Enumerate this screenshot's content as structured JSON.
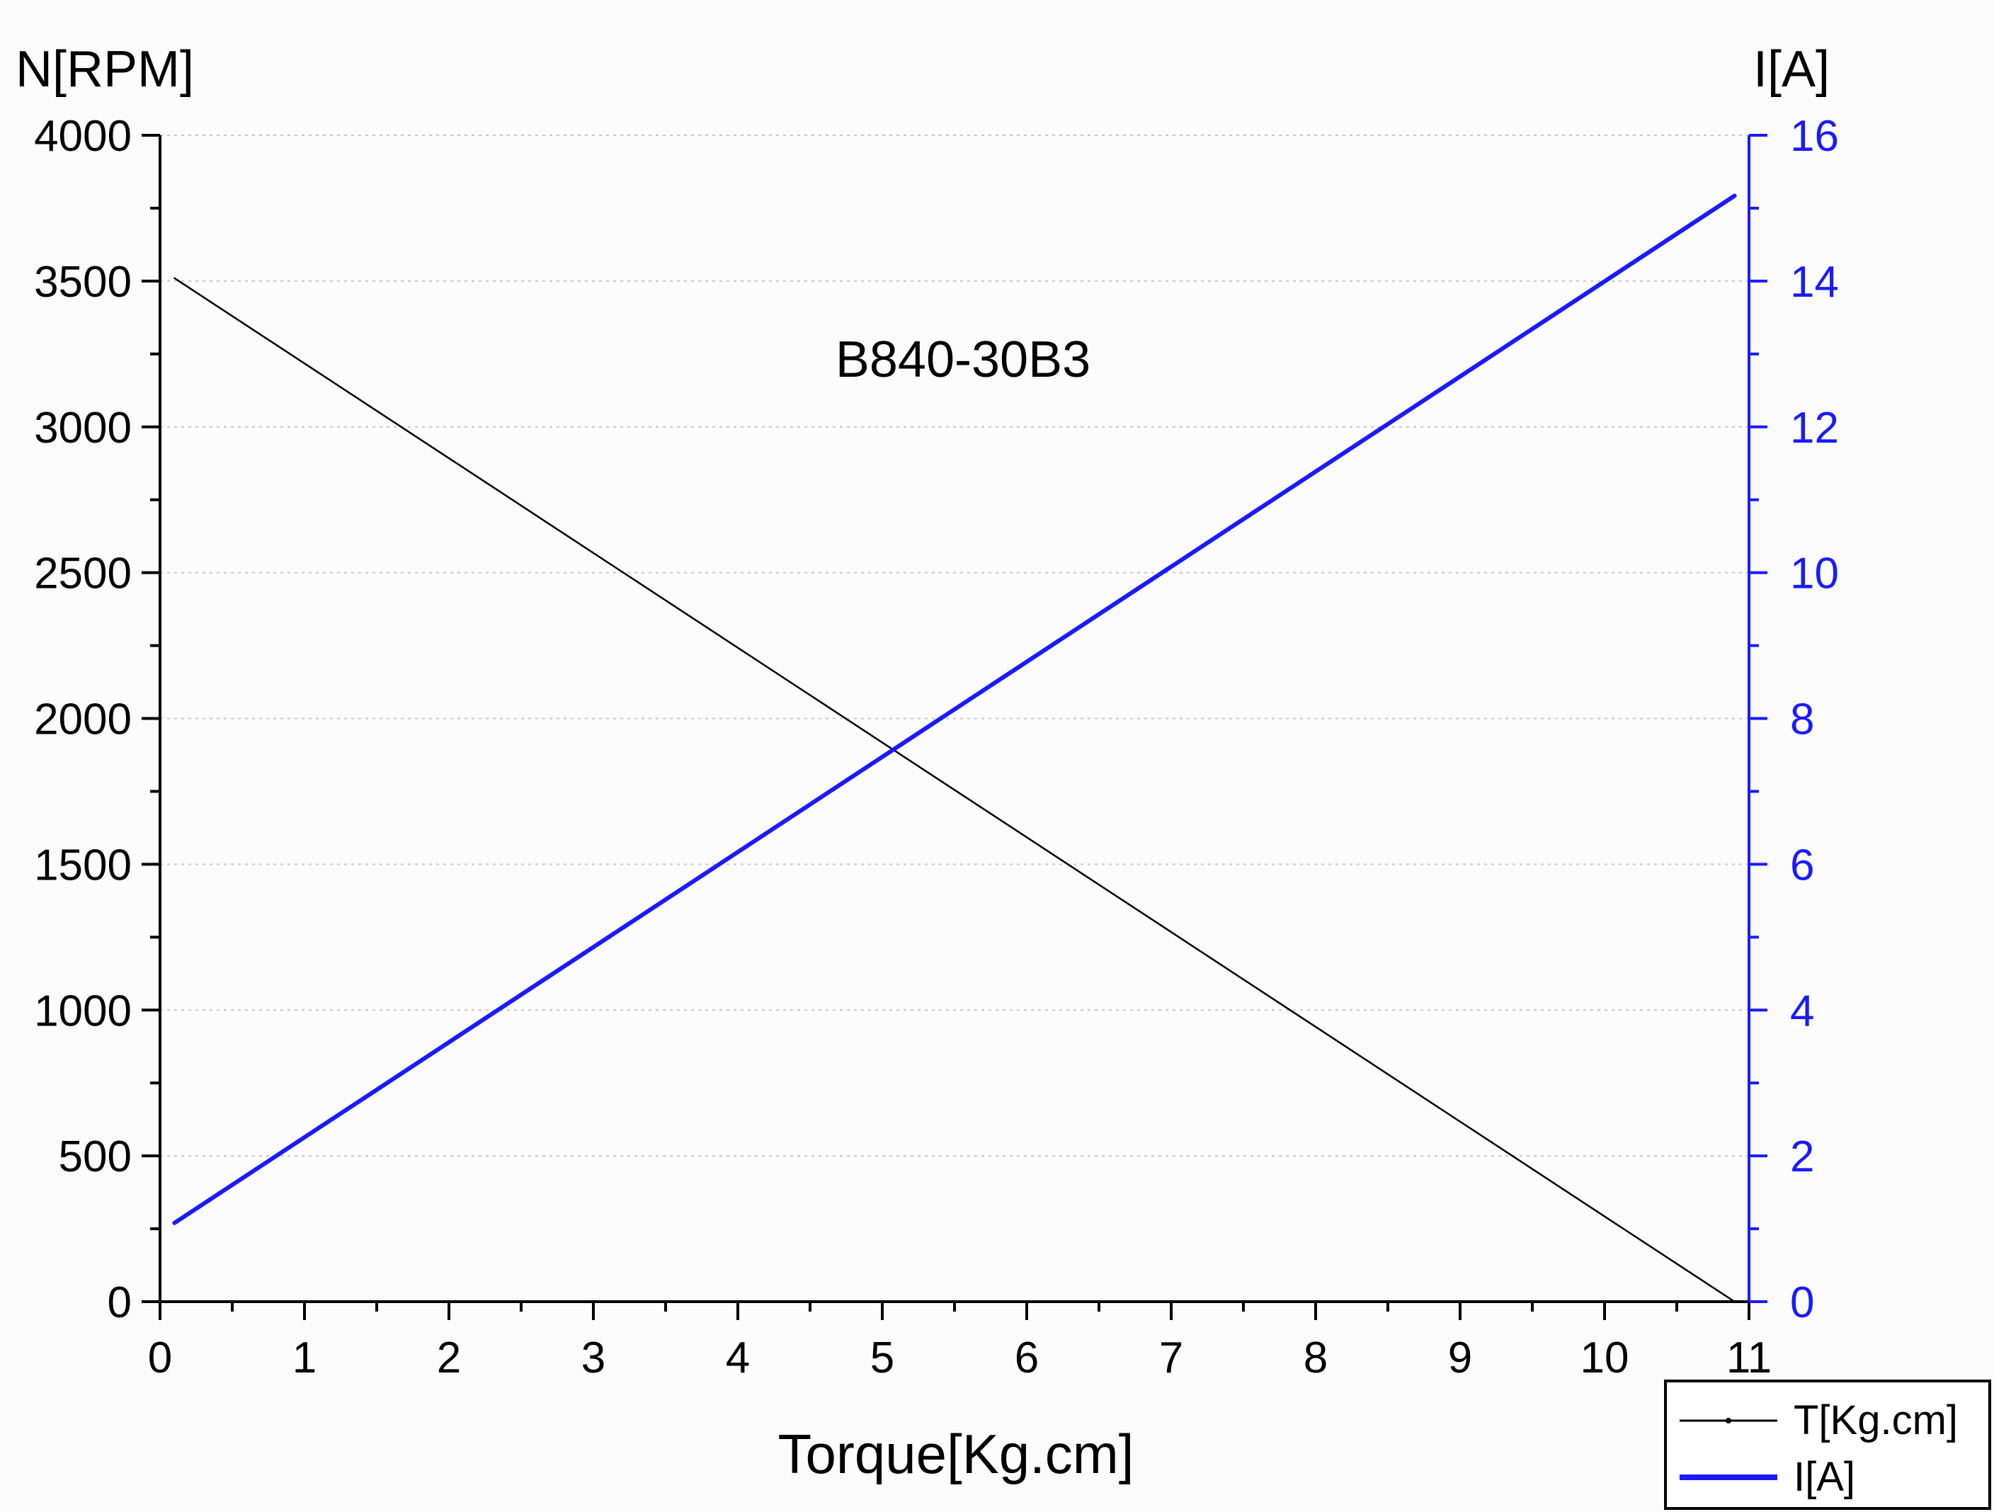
{
  "chart_data": {
    "type": "line",
    "annotation": "B840-30B3",
    "xlabel": "Torque[Kg.cm]",
    "ylabel_left": "N[RPM]",
    "ylabel_right": "I[A]",
    "xlim": [
      0,
      11
    ],
    "ylim_left": [
      0,
      4000
    ],
    "ylim_right": [
      0,
      16
    ],
    "x_ticks": [
      "0",
      "1",
      "2",
      "3",
      "4",
      "5",
      "6",
      "7",
      "8",
      "9",
      "10",
      "11"
    ],
    "y_left_ticks": [
      "0",
      "500",
      "1000",
      "1500",
      "2000",
      "2500",
      "3000",
      "3500",
      "4000"
    ],
    "y_right_ticks": [
      "0",
      "2",
      "4",
      "6",
      "8",
      "10",
      "12",
      "14",
      "16"
    ],
    "grid": "horizontal dotted",
    "legend_position": "bottom-right",
    "series": [
      {
        "name": "T[Kg.cm]",
        "axis": "left",
        "color": "#000000",
        "style": "thin solid",
        "x": [
          0.1,
          10.9
        ],
        "values": [
          3510,
          0
        ]
      },
      {
        "name": "I[A]",
        "axis": "right",
        "color": "#1a1aff",
        "style": "thick solid",
        "x": [
          0.1,
          10.9
        ],
        "values": [
          1.08,
          15.17
        ]
      }
    ]
  }
}
